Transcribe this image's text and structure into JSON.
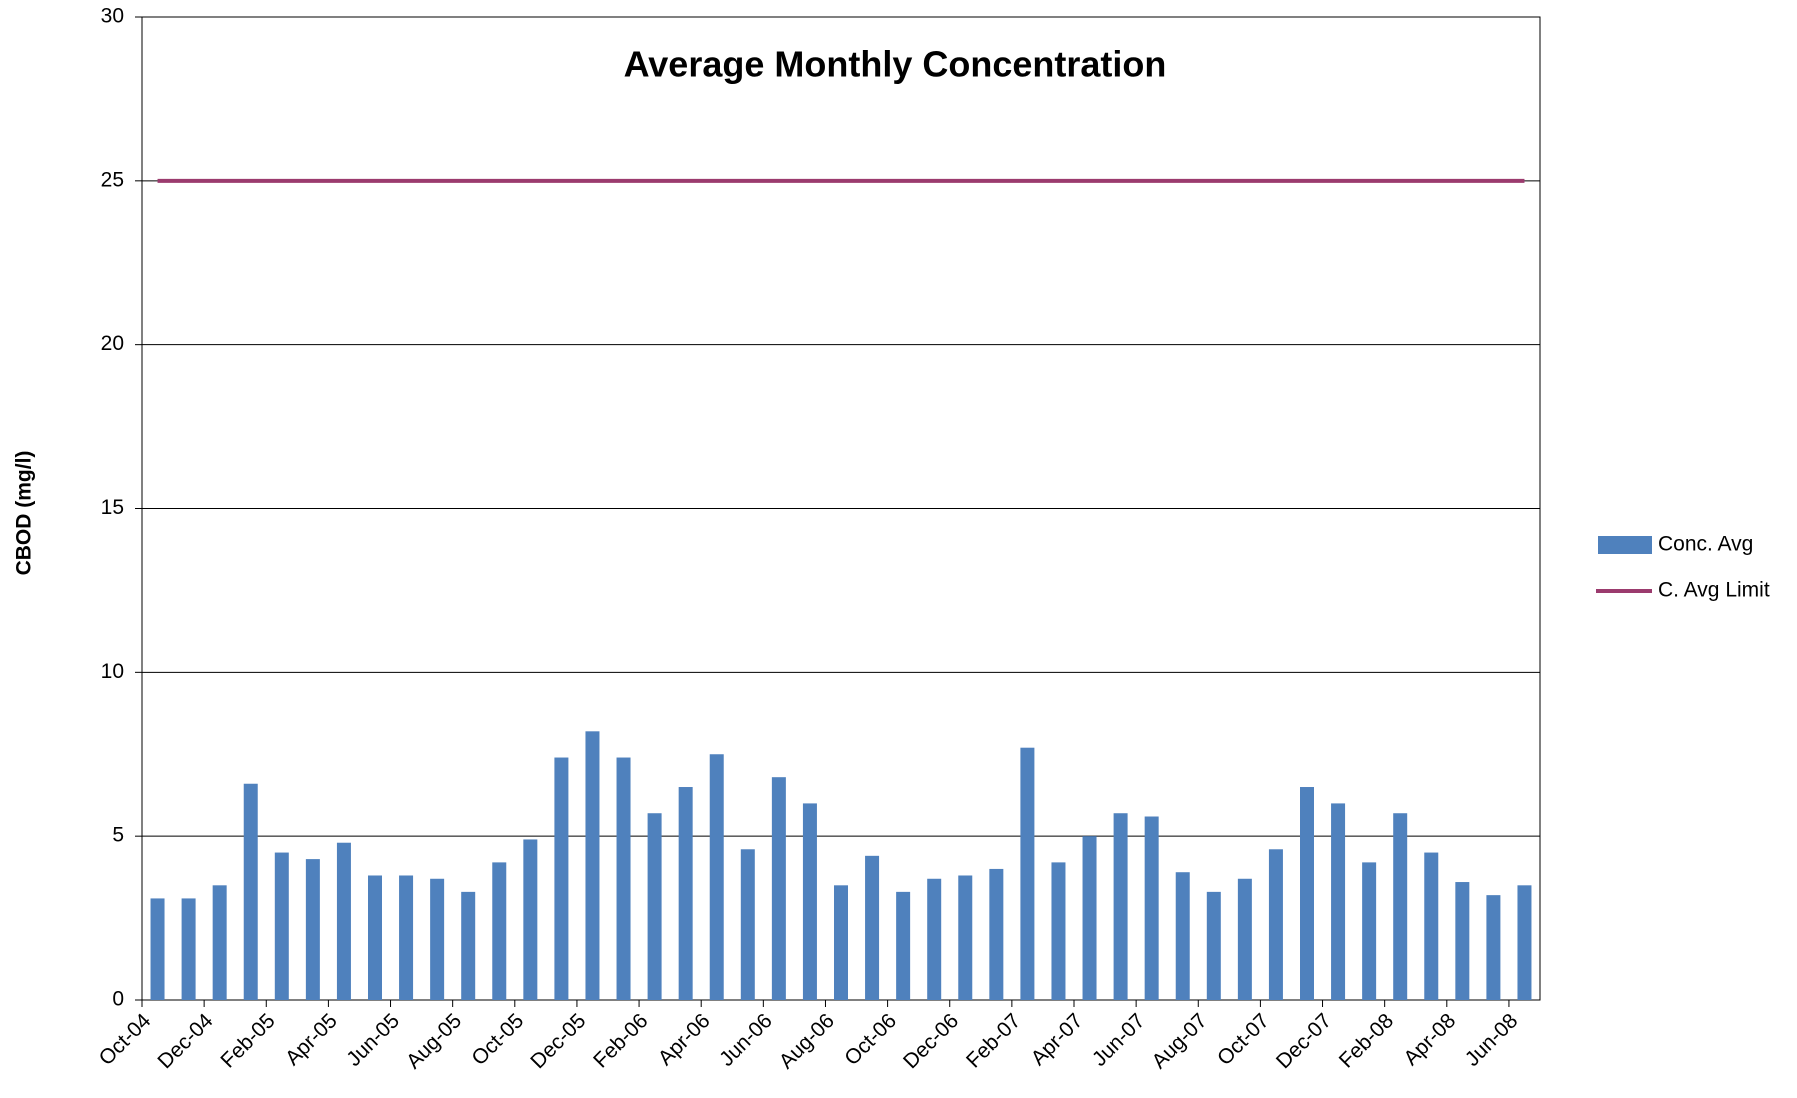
{
  "chart_data": {
    "type": "bar",
    "title": "Average Monthly Concentration",
    "y_label": "CBOD (mg/l)",
    "categories": [
      "Oct-04",
      null,
      "Dec-04",
      null,
      "Feb-05",
      null,
      "Apr-05",
      null,
      "Jun-05",
      null,
      "Aug-05",
      null,
      "Oct-05",
      null,
      "Dec-05",
      null,
      "Feb-06",
      null,
      "Apr-06",
      null,
      "Jun-06",
      null,
      "Aug-06",
      null,
      "Oct-06",
      null,
      "Dec-06",
      null,
      "Feb-07",
      null,
      "Apr-07",
      null,
      "Jun-07",
      null,
      "Aug-07",
      null,
      "Oct-07",
      null,
      "Dec-07",
      null,
      "Feb-08",
      null,
      "Apr-08",
      null,
      "Jun-08"
    ],
    "series": [
      {
        "name": "Conc. Avg",
        "type": "bar",
        "color": "#4f81bd",
        "values": [
          3.1,
          3.1,
          3.5,
          6.6,
          4.5,
          4.3,
          4.8,
          3.8,
          3.8,
          3.7,
          3.3,
          4.2,
          4.9,
          7.4,
          8.2,
          7.4,
          5.7,
          6.5,
          7.5,
          4.6,
          6.8,
          6.0,
          3.5,
          4.4,
          3.3,
          3.7,
          3.8,
          4.0,
          7.7,
          4.2,
          5.0,
          5.7,
          5.6,
          3.9,
          3.3,
          3.7,
          4.6,
          6.5,
          6.0,
          4.2,
          5.7,
          4.5,
          3.6,
          3.2,
          3.5
        ]
      },
      {
        "name": "C. Avg Limit",
        "type": "line",
        "color": "#9b3b6e",
        "values": [
          25,
          25,
          25,
          25,
          25,
          25,
          25,
          25,
          25,
          25,
          25,
          25,
          25,
          25,
          25,
          25,
          25,
          25,
          25,
          25,
          25,
          25,
          25,
          25,
          25,
          25,
          25,
          25,
          25,
          25,
          25,
          25,
          25,
          25,
          25,
          25,
          25,
          25,
          25,
          25,
          25,
          25,
          25,
          25,
          25
        ]
      }
    ],
    "ylim": [
      0,
      30
    ],
    "yticks": [
      0,
      5,
      10,
      15,
      20,
      25,
      30
    ],
    "grid": true,
    "legend": "right"
  }
}
